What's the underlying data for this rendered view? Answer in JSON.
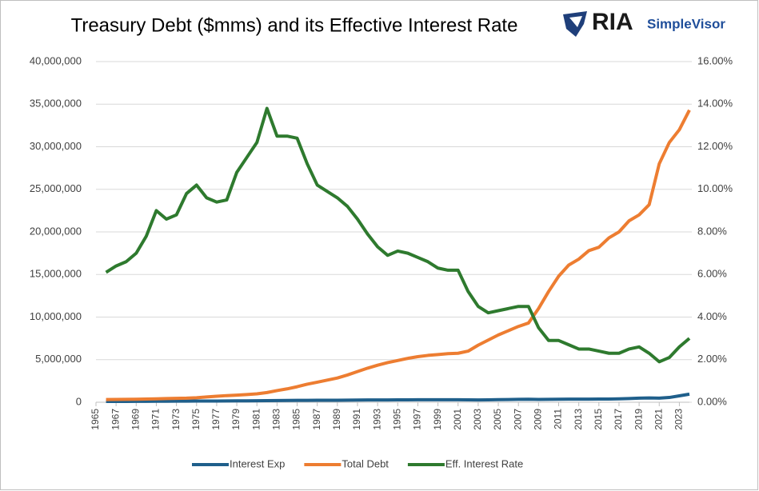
{
  "chart_data": {
    "type": "line",
    "title": "Treasury Debt ($mms) and its Effective Interest Rate",
    "brand": "RIA",
    "brand_sub": "SimpleVisor",
    "x": [
      1966,
      1967,
      1968,
      1969,
      1970,
      1971,
      1972,
      1973,
      1974,
      1975,
      1976,
      1977,
      1978,
      1979,
      1980,
      1981,
      1982,
      1983,
      1984,
      1985,
      1986,
      1987,
      1988,
      1989,
      1990,
      1991,
      1992,
      1993,
      1994,
      1995,
      1996,
      1997,
      1998,
      1999,
      2000,
      2001,
      2002,
      2003,
      2004,
      2005,
      2006,
      2007,
      2008,
      2009,
      2010,
      2011,
      2012,
      2013,
      2014,
      2015,
      2016,
      2017,
      2018,
      2019,
      2020,
      2021,
      2022,
      2023,
      2024
    ],
    "series": [
      {
        "name": "Interest Exp",
        "color": "#1f5f8b",
        "values": [
          90000,
          95000,
          100000,
          105000,
          110000,
          115000,
          120000,
          125000,
          130000,
          135000,
          140000,
          145000,
          150000,
          160000,
          170000,
          180000,
          190000,
          200000,
          210000,
          220000,
          225000,
          230000,
          235000,
          240000,
          250000,
          260000,
          265000,
          270000,
          275000,
          280000,
          285000,
          290000,
          290000,
          290000,
          290000,
          290000,
          280000,
          270000,
          280000,
          300000,
          320000,
          340000,
          350000,
          330000,
          340000,
          350000,
          360000,
          360000,
          360000,
          370000,
          380000,
          400000,
          430000,
          480000,
          500000,
          480000,
          560000,
          750000,
          950000
        ]
      },
      {
        "name": "Total Debt",
        "color": "#ed7d31",
        "values": [
          320000,
          330000,
          345000,
          355000,
          370000,
          400000,
          430000,
          460000,
          480000,
          530000,
          620000,
          700000,
          780000,
          830000,
          900000,
          990000,
          1140000,
          1370000,
          1570000,
          1820000,
          2120000,
          2350000,
          2600000,
          2850000,
          3200000,
          3600000,
          4000000,
          4350000,
          4650000,
          4900000,
          5150000,
          5350000,
          5500000,
          5600000,
          5700000,
          5750000,
          6000000,
          6700000,
          7300000,
          7900000,
          8400000,
          8900000,
          9300000,
          11000000,
          13000000,
          14800000,
          16100000,
          16800000,
          17800000,
          18200000,
          19300000,
          20000000,
          21300000,
          22000000,
          23200000,
          28000000,
          30500000,
          32000000,
          34300000
        ]
      },
      {
        "name": "Eff. Interest Rate",
        "color": "#2e7a2e",
        "axis": "y2",
        "values": [
          6.1,
          6.4,
          6.6,
          7.0,
          7.8,
          9.0,
          8.6,
          8.8,
          9.8,
          10.2,
          9.6,
          9.4,
          9.5,
          10.8,
          11.5,
          12.2,
          13.8,
          12.5,
          12.5,
          12.4,
          11.2,
          10.2,
          9.9,
          9.6,
          9.2,
          8.6,
          7.9,
          7.3,
          6.9,
          7.1,
          7.0,
          6.8,
          6.6,
          6.3,
          6.2,
          6.2,
          5.2,
          4.5,
          4.2,
          4.3,
          4.4,
          4.5,
          4.5,
          3.5,
          2.9,
          2.9,
          2.7,
          2.5,
          2.5,
          2.4,
          2.3,
          2.3,
          2.5,
          2.6,
          2.3,
          1.9,
          2.1,
          2.6,
          3.0
        ]
      }
    ],
    "xlim": [
      1965,
      2024
    ],
    "xticks": [
      1965,
      1967,
      1969,
      1971,
      1973,
      1975,
      1977,
      1979,
      1981,
      1983,
      1985,
      1987,
      1989,
      1991,
      1993,
      1995,
      1997,
      1999,
      2001,
      2003,
      2005,
      2007,
      2009,
      2011,
      2013,
      2015,
      2017,
      2019,
      2021,
      2023
    ],
    "ylim": [
      0,
      40000000
    ],
    "yticks": [
      {
        "value": 0,
        "label": "0"
      },
      {
        "value": 5000000,
        "label": "5,000,000"
      },
      {
        "value": 10000000,
        "label": "10,000,000"
      },
      {
        "value": 15000000,
        "label": "15,000,000"
      },
      {
        "value": 20000000,
        "label": "20,000,000"
      },
      {
        "value": 25000000,
        "label": "25,000,000"
      },
      {
        "value": 30000000,
        "label": "30,000,000"
      },
      {
        "value": 35000000,
        "label": "35,000,000"
      },
      {
        "value": 40000000,
        "label": "40,000,000"
      }
    ],
    "y2lim": [
      0,
      16
    ],
    "y2ticks": [
      {
        "value": 0,
        "label": "0.00%"
      },
      {
        "value": 2,
        "label": "2.00%"
      },
      {
        "value": 4,
        "label": "4.00%"
      },
      {
        "value": 6,
        "label": "6.00%"
      },
      {
        "value": 8,
        "label": "8.00%"
      },
      {
        "value": 10,
        "label": "10.00%"
      },
      {
        "value": 12,
        "label": "12.00%"
      },
      {
        "value": 14,
        "label": "14.00%"
      },
      {
        "value": 16,
        "label": "16.00%"
      }
    ],
    "grid": true,
    "legend": "bottom"
  }
}
